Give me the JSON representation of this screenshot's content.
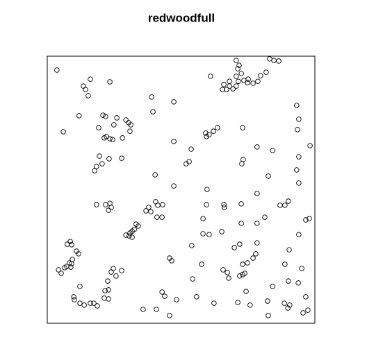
{
  "chart_data": {
    "type": "scatter",
    "title": "redwoodfull",
    "xlim": [
      0,
      1
    ],
    "ylim": [
      0,
      1
    ],
    "color": "#000000",
    "x": [
      0.036,
      0.06,
      0.135,
      0.143,
      0.161,
      0.153,
      0.234,
      0.119,
      0.208,
      0.218,
      0.192,
      0.26,
      0.294,
      0.304,
      0.312,
      0.309,
      0.249,
      0.213,
      0.221,
      0.234,
      0.244,
      0.281,
      0.195,
      0.278,
      0.231,
      0.205,
      0.184,
      0.177,
      0.39,
      0.395,
      0.473,
      0.473,
      0.538,
      0.53,
      0.519,
      0.403,
      0.473,
      0.184,
      0.218,
      0.234,
      0.229,
      0.239,
      0.369,
      0.379,
      0.387,
      0.405,
      0.413,
      0.431,
      0.41,
      0.429,
      0.332,
      0.34,
      0.325,
      0.317,
      0.309,
      0.294,
      0.306,
      0.317,
      0.086,
      0.075,
      0.091,
      0.109,
      0.117,
      0.094,
      0.083,
      0.073,
      0.065,
      0.042,
      0.052,
      0.091,
      0.088,
      0.247,
      0.239,
      0.278,
      0.257,
      0.226,
      0.216,
      0.229,
      0.213,
      0.229,
      0.122,
      0.099,
      0.101,
      0.122,
      0.138,
      0.161,
      0.174,
      0.187,
      0.358,
      0.408,
      0.429,
      0.439,
      0.457,
      0.483,
      0.457,
      0.465,
      0.543,
      0.558,
      0.577,
      0.61,
      0.66,
      0.655,
      0.67,
      0.681,
      0.681,
      0.694,
      0.706,
      0.714,
      0.706,
      0.725,
      0.712,
      0.717,
      0.706,
      0.735,
      0.751,
      0.748,
      0.769,
      0.787,
      0.797,
      0.818,
      0.831,
      0.847,
      0.865,
      0.636,
      0.621,
      0.605,
      0.592,
      0.595,
      0.73,
      0.732,
      0.727,
      0.784,
      0.842,
      0.932,
      0.94,
      0.935,
      0.982,
      0.94,
      0.932,
      0.94,
      0.826,
      0.784,
      0.597,
      0.595,
      0.66,
      0.662,
      0.725,
      0.87,
      0.888,
      0.901,
      0.582,
      0.582,
      0.652,
      0.725,
      0.784,
      0.813,
      0.966,
      0.979,
      0.94,
      0.54,
      0.605,
      0.719,
      0.699,
      0.784,
      0.904,
      0.779,
      0.769,
      0.73,
      0.748,
      0.657,
      0.673,
      0.678,
      0.719,
      0.73,
      0.738,
      0.743,
      0.888,
      0.951,
      0.901,
      0.842,
      0.623,
      0.712,
      0.758,
      0.823,
      0.826,
      0.886,
      0.899,
      0.906,
      0.966,
      0.974,
      0.956,
      0.938
    ],
    "values": [
      0.948,
      0.717,
      0.888,
      0.875,
      0.914,
      0.852,
      0.904,
      0.777,
      0.779,
      0.774,
      0.732,
      0.769,
      0.761,
      0.751,
      0.743,
      0.719,
      0.743,
      0.694,
      0.699,
      0.691,
      0.688,
      0.694,
      0.626,
      0.618,
      0.616,
      0.597,
      0.587,
      0.571,
      0.847,
      0.792,
      0.829,
      0.681,
      0.652,
      0.605,
      0.597,
      0.556,
      0.514,
      0.444,
      0.444,
      0.449,
      0.423,
      0.434,
      0.421,
      0.434,
      0.418,
      0.455,
      0.442,
      0.444,
      0.397,
      0.397,
      0.371,
      0.364,
      0.351,
      0.345,
      0.338,
      0.33,
      0.327,
      0.322,
      0.306,
      0.296,
      0.294,
      0.27,
      0.26,
      0.239,
      0.226,
      0.213,
      0.208,
      0.2,
      0.187,
      0.223,
      0.21,
      0.205,
      0.192,
      0.197,
      0.177,
      0.158,
      0.122,
      0.125,
      0.094,
      0.091,
      0.138,
      0.099,
      0.088,
      0.075,
      0.068,
      0.075,
      0.075,
      0.065,
      0.052,
      0.052,
      0.117,
      0.101,
      0.029,
      0.088,
      0.244,
      0.234,
      0.166,
      0.099,
      0.221,
      0.925,
      0.894,
      0.875,
      0.875,
      0.888,
      0.906,
      0.878,
      0.888,
      0.906,
      0.925,
      0.935,
      0.953,
      0.966,
      0.984,
      0.909,
      0.914,
      0.901,
      0.899,
      0.906,
      0.927,
      0.94,
      0.99,
      0.984,
      0.982,
      0.732,
      0.719,
      0.706,
      0.712,
      0.699,
      0.732,
      0.613,
      0.597,
      0.66,
      0.647,
      0.816,
      0.764,
      0.725,
      0.665,
      0.623,
      0.574,
      0.525,
      0.551,
      0.486,
      0.501,
      0.444,
      0.444,
      0.434,
      0.447,
      0.442,
      0.442,
      0.457,
      0.392,
      0.335,
      0.343,
      0.374,
      0.374,
      0.397,
      0.387,
      0.392,
      0.332,
      0.291,
      0.332,
      0.296,
      0.283,
      0.301,
      0.275,
      0.26,
      0.244,
      0.221,
      0.226,
      0.2,
      0.19,
      0.169,
      0.177,
      0.182,
      0.187,
      0.119,
      0.221,
      0.205,
      0.158,
      0.138,
      0.075,
      0.078,
      0.068,
      0.083,
      0.029,
      0.075,
      0.057,
      0.068,
      0.099,
      0.049,
      0.039,
      0.151
    ]
  }
}
